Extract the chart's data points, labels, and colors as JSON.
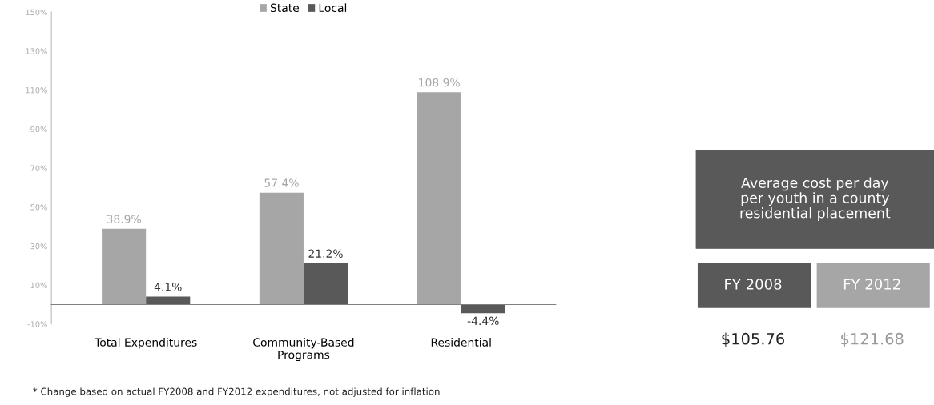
{
  "chart_data": [
    {
      "type": "bar",
      "categories": [
        "Total Expenditures",
        "Community-Based\nPrograms",
        "Residential"
      ],
      "series": [
        {
          "name": "State",
          "color": "#a6a6a6",
          "values": [
            38.9,
            57.4,
            108.9
          ],
          "value_labels": [
            "38.9%",
            "57.4%",
            "108.9%"
          ]
        },
        {
          "name": "Local",
          "color": "#595959",
          "values": [
            4.1,
            21.2,
            -4.4
          ],
          "value_labels": [
            "4.1%",
            "21.2%",
            "-4.4%"
          ]
        }
      ],
      "ylim": [
        -10,
        150
      ],
      "yticks": [
        {
          "value": -10,
          "label": "-10%"
        },
        {
          "value": 10,
          "label": "10%"
        },
        {
          "value": 30,
          "label": "30%"
        },
        {
          "value": 50,
          "label": "50%"
        },
        {
          "value": 70,
          "label": "70%"
        },
        {
          "value": 90,
          "label": "90%"
        },
        {
          "value": 110,
          "label": "110%"
        },
        {
          "value": 130,
          "label": "130%"
        },
        {
          "value": 150,
          "label": "150%"
        }
      ],
      "legend": "top",
      "grid": false,
      "annotations": [
        "* Change based on actual FY2008 and FY2012 expenditures, not adjusted for inflation"
      ]
    },
    {
      "type": "other",
      "title": "Average cost per day\nper youth in a county\nresidential placement",
      "categories": [
        "FY 2008",
        "FY 2012"
      ],
      "value_labels": [
        "$105.76",
        "$121.68"
      ],
      "colors": [
        "#595959",
        "#a6a6a6"
      ]
    }
  ]
}
